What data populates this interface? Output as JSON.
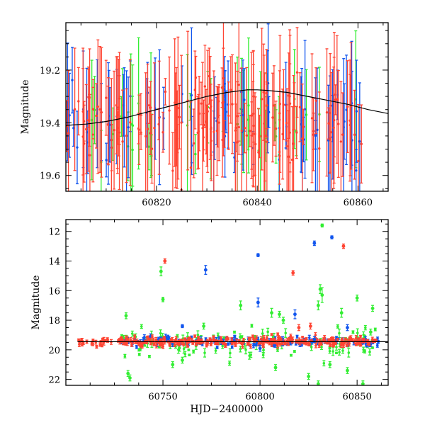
{
  "chart_data": [
    {
      "type": "scatter",
      "title": "",
      "xlabel": "",
      "ylabel": "Magnitude",
      "xlim": [
        60802,
        60866
      ],
      "ylim": [
        19.66,
        19.02
      ],
      "y_inverted": true,
      "xticks": [
        60820,
        60840,
        60860
      ],
      "yticks": [
        19.2,
        19.4,
        19.6
      ],
      "grid": false,
      "legend": "none",
      "colors": {
        "g": "#33ee33",
        "c": "#1155ee",
        "o": "#ff4433",
        "model": "#000000"
      },
      "model_curve": {
        "x": [
          60802,
          60806,
          60810,
          60814,
          60818,
          60822,
          60826,
          60830,
          60834,
          60838,
          60840,
          60842,
          60846,
          60850,
          60854,
          60858,
          60862,
          60866
        ],
        "y": [
          19.41,
          19.405,
          19.395,
          19.38,
          19.36,
          19.34,
          19.32,
          19.3,
          19.285,
          19.275,
          19.275,
          19.277,
          19.285,
          19.3,
          19.315,
          19.33,
          19.35,
          19.365
        ]
      },
      "series_summary": {
        "x_range": [
          60802,
          60861
        ],
        "typical_mag": 19.4,
        "typical_error": 0.1
      }
    },
    {
      "type": "scatter",
      "title": "",
      "xlabel": "HJD−2400000",
      "ylabel": "Magnitude",
      "xlim": [
        60700,
        60866
      ],
      "ylim": [
        22.4,
        11.2
      ],
      "y_inverted": true,
      "xticks": [
        60750,
        60800,
        60850
      ],
      "yticks": [
        12,
        14,
        16,
        18,
        20,
        22
      ],
      "grid": false,
      "legend": "none",
      "colors": {
        "g": "#33ee33",
        "c": "#1155ee",
        "o": "#ff4433",
        "model": "#000000"
      },
      "model_line": {
        "x": [
          60706,
          60866
        ],
        "y": [
          19.45,
          19.45
        ]
      },
      "outliers": {
        "g": [
          [
            60749,
            14.7,
            0.3
          ],
          [
            60750,
            16.6,
            0.15
          ],
          [
            60731,
            17.7,
            0.2
          ],
          [
            60732,
            21.6,
            0.2
          ],
          [
            60733,
            21.9,
            0.2
          ],
          [
            60771,
            18.4,
            0.2
          ],
          [
            60790,
            17.0,
            0.3
          ],
          [
            60806,
            17.5,
            0.3
          ],
          [
            60808,
            21.2,
            0.2
          ],
          [
            60810,
            17.6,
            0.2
          ],
          [
            60812,
            18.0,
            0.2
          ],
          [
            60832,
            11.6,
            0.1
          ],
          [
            60832,
            16.3,
            0.5
          ],
          [
            60831,
            15.9,
            0.3
          ],
          [
            60830,
            17.0,
            0.3
          ],
          [
            60825,
            21.8,
            0.2
          ],
          [
            60830,
            22.3,
            0.2
          ],
          [
            60836,
            21.0,
            0.2
          ],
          [
            60842,
            17.5,
            0.3
          ],
          [
            60850,
            16.5,
            0.2
          ],
          [
            60853,
            22.3,
            0.2
          ],
          [
            60857,
            18.8,
            0.2
          ],
          [
            60858,
            17.2,
            0.2
          ],
          [
            60845,
            21.4,
            0.2
          ],
          [
            60755,
            21.0,
            0.2
          ],
          [
            60760,
            20.7,
            0.2
          ]
        ],
        "c": [
          [
            60772,
            14.6,
            0.3
          ],
          [
            60799,
            13.6,
            0.1
          ],
          [
            60799,
            16.8,
            0.3
          ],
          [
            60800,
            19.9,
            0.2
          ],
          [
            60828,
            12.8,
            0.15
          ],
          [
            60837,
            12.4,
            0.1
          ],
          [
            60760,
            18.4,
            0.1
          ],
          [
            60818,
            17.6,
            0.3
          ],
          [
            60845,
            18.5,
            0.2
          ],
          [
            60828,
            19.3,
            0.2
          ]
        ],
        "o": [
          [
            60751,
            14.0,
            0.15
          ],
          [
            60817,
            14.8,
            0.15
          ],
          [
            60843,
            13.0,
            0.15
          ],
          [
            60820,
            18.5,
            0.2
          ],
          [
            60826,
            18.4,
            0.2
          ]
        ]
      },
      "series_summary": {
        "x_range": [
          60706,
          60861
        ],
        "typical_mag": 19.45
      }
    }
  ]
}
